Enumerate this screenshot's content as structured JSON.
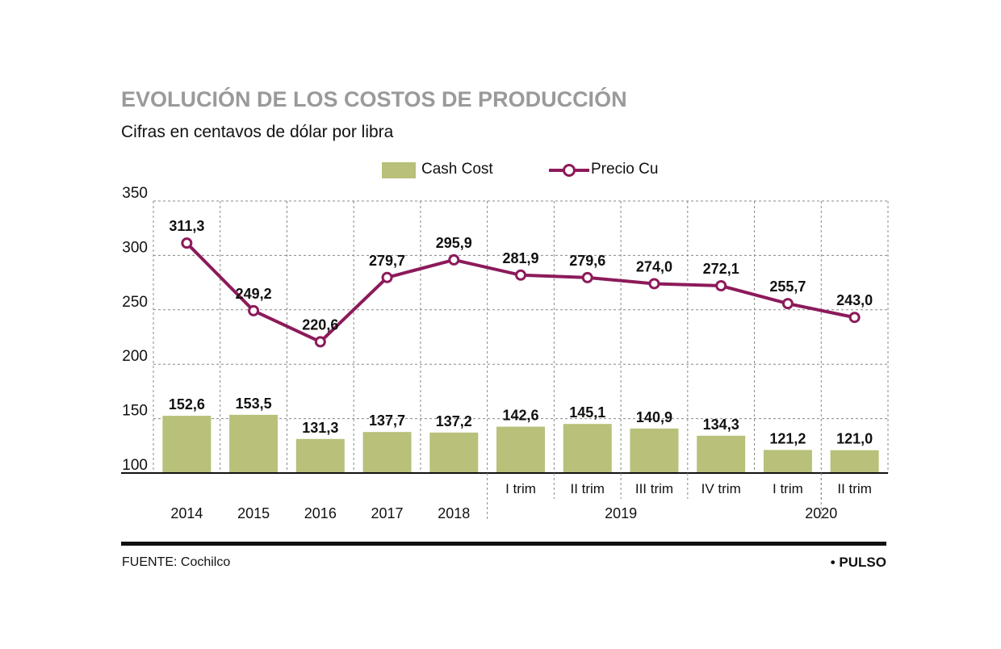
{
  "header": {
    "title": "EVOLUCIÓN DE LOS COSTOS DE PRODUCCIÓN",
    "subtitle": "Cifras en centavos de dólar por libra"
  },
  "legend": {
    "cash_cost": "Cash Cost",
    "precio_cu": "Precio Cu"
  },
  "footer": {
    "source": "FUENTE: Cochilco",
    "brand": "• PULSO"
  },
  "colors": {
    "bar": "#b8c07a",
    "line": "#8c1a5a",
    "grid": "#888888"
  },
  "chart_data": {
    "type": "bar",
    "categories": [
      "2014",
      "2015",
      "2016",
      "2017",
      "2018",
      "I trim",
      "II trim",
      "III trim",
      "IV trim",
      "I trim",
      "II trim"
    ],
    "group_labels": [
      "2014",
      "2015",
      "2016",
      "2017",
      "2018",
      "2019",
      "2020"
    ],
    "series": [
      {
        "name": "Cash Cost",
        "type": "bar",
        "values": [
          152.6,
          153.5,
          131.3,
          137.7,
          137.2,
          142.6,
          145.1,
          140.9,
          134.3,
          121.2,
          121.0
        ],
        "labels": [
          "152,6",
          "153,5",
          "131,3",
          "137,7",
          "137,2",
          "142,6",
          "145,1",
          "140,9",
          "134,3",
          "121,2",
          "121,0"
        ]
      },
      {
        "name": "Precio Cu",
        "type": "line",
        "values": [
          311.3,
          249.2,
          220.6,
          279.7,
          295.9,
          281.9,
          279.6,
          274.0,
          272.1,
          255.7,
          243.0
        ],
        "labels": [
          "311,3",
          "249,2",
          "220,6",
          "279,7",
          "295,9",
          "281,9",
          "279,6",
          "274,0",
          "272,1",
          "255,7",
          "243,0"
        ]
      }
    ],
    "yticks": [
      "100",
      "150",
      "200",
      "250",
      "300",
      "350"
    ],
    "ylim": [
      100,
      350
    ],
    "grid": true,
    "legend_position": "top"
  }
}
